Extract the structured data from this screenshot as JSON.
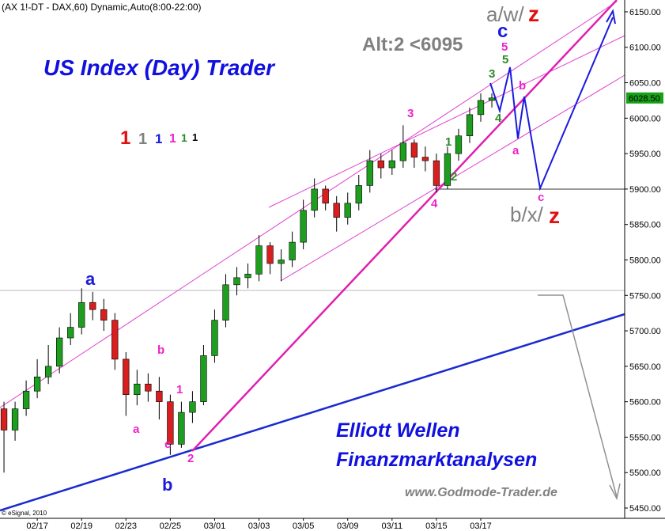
{
  "chart_data": {
    "type": "candlestick",
    "title": "(AX 1!-DT - DAX,60) Dynamic,Auto(8:00-22:00)",
    "x": [
      -0.5,
      0,
      0.5,
      1,
      1.5,
      2,
      2.5,
      3,
      3.5,
      4,
      4.5,
      5,
      5.5,
      6,
      6.5,
      7,
      7.5,
      8,
      8.5,
      9,
      9.5,
      10,
      10.5,
      11,
      11.5,
      12,
      12.5,
      13,
      13.5,
      14,
      14.5,
      15,
      15.5,
      16,
      16.5,
      17,
      17.5,
      18,
      18.5,
      19,
      19.5,
      20,
      20.5,
      21,
      21.5
    ],
    "open": [
      5590,
      5560,
      5590,
      5615,
      5635,
      5650,
      5690,
      5705,
      5740,
      5730,
      5715,
      5660,
      5610,
      5625,
      5615,
      5600,
      5540,
      5585,
      5600,
      5665,
      5715,
      5765,
      5775,
      5780,
      5820,
      5795,
      5800,
      5825,
      5870,
      5900,
      5880,
      5860,
      5880,
      5905,
      5940,
      5930,
      5940,
      5965,
      5945,
      5940,
      5905,
      5950,
      5975,
      6005,
      6025
    ],
    "high": [
      5600,
      5600,
      5630,
      5660,
      5680,
      5705,
      5725,
      5760,
      5755,
      5745,
      5725,
      5670,
      5645,
      5640,
      5635,
      5610,
      5600,
      5615,
      5680,
      5730,
      5780,
      5790,
      5795,
      5835,
      5825,
      5815,
      5840,
      5885,
      5915,
      5905,
      5890,
      5895,
      5920,
      5955,
      5950,
      5955,
      5990,
      5970,
      5960,
      5950,
      5960,
      5985,
      6015,
      6035,
      6035
    ],
    "low": [
      5500,
      5545,
      5580,
      5605,
      5625,
      5640,
      5680,
      5695,
      5715,
      5700,
      5645,
      5580,
      5595,
      5600,
      5575,
      5525,
      5535,
      5570,
      5595,
      5655,
      5705,
      5750,
      5760,
      5770,
      5780,
      5770,
      5790,
      5815,
      5860,
      5870,
      5840,
      5850,
      5870,
      5895,
      5915,
      5920,
      5930,
      5930,
      5925,
      5895,
      5900,
      5940,
      5965,
      5995,
      6015
    ],
    "close": [
      5560,
      5590,
      5615,
      5635,
      5650,
      5690,
      5705,
      5740,
      5730,
      5715,
      5660,
      5610,
      5625,
      5615,
      5600,
      5540,
      5585,
      5600,
      5665,
      5715,
      5765,
      5775,
      5780,
      5820,
      5795,
      5800,
      5825,
      5870,
      5900,
      5880,
      5860,
      5880,
      5905,
      5940,
      5930,
      5940,
      5965,
      5945,
      5940,
      5905,
      5950,
      5975,
      6005,
      6025,
      6028.5
    ],
    "up_color": "#1e9e1e",
    "down_color": "#d81e1e",
    "xlim": [
      -0.68,
      27.49
    ],
    "xticks": [
      {
        "value": 1,
        "label": "02/17"
      },
      {
        "value": 3,
        "label": "02/19"
      },
      {
        "value": 5,
        "label": "02/23"
      },
      {
        "value": 7,
        "label": "02/25"
      },
      {
        "value": 9,
        "label": "03/01"
      },
      {
        "value": 11,
        "label": "03/03"
      },
      {
        "value": 13,
        "label": "03/05"
      },
      {
        "value": 15,
        "label": "03/09"
      },
      {
        "value": 17,
        "label": "03/11"
      },
      {
        "value": 19,
        "label": "03/15"
      },
      {
        "value": 21,
        "label": "03/17"
      }
    ],
    "ylim": [
      5435.5,
      6166.7
    ],
    "yticks": [
      {
        "value": 5450,
        "label": "5450.00"
      },
      {
        "value": 5500,
        "label": "5500.00"
      },
      {
        "value": 5550,
        "label": "5550.00"
      },
      {
        "value": 5600,
        "label": "5600.00"
      },
      {
        "value": 5650,
        "label": "5650.00"
      },
      {
        "value": 5700,
        "label": "5700.00"
      },
      {
        "value": 5750,
        "label": "5750.00"
      },
      {
        "value": 5800,
        "label": "5800.00"
      },
      {
        "value": 5850,
        "label": "5850.00"
      },
      {
        "value": 5900,
        "label": "5900.00"
      },
      {
        "value": 5950,
        "label": "5950.00"
      },
      {
        "value": 6000,
        "label": "6000.00"
      },
      {
        "value": 6050,
        "label": "6050.00"
      },
      {
        "value": 6100,
        "label": "6100.00"
      },
      {
        "value": 6150,
        "label": "6150.00"
      }
    ],
    "last_price": {
      "value": 6028.5,
      "label": "6028.50"
    },
    "annotations": [
      "US Index (Day) Trader",
      "1",
      "1",
      "1",
      "1",
      "1",
      "1",
      "Alt:2 <6095",
      "a/w/",
      "z",
      "c",
      "5",
      "5",
      "3",
      "b",
      "4",
      "a",
      "c",
      "b/x/",
      "z",
      "3",
      "1",
      "2",
      "4",
      "a",
      "b",
      "a",
      "1",
      "c",
      "2",
      "b",
      "Elliott Wellen",
      "Finanzmarktanalysen",
      "www.Godmode-Trader.de",
      "© eSignal, 2010"
    ]
  }
}
